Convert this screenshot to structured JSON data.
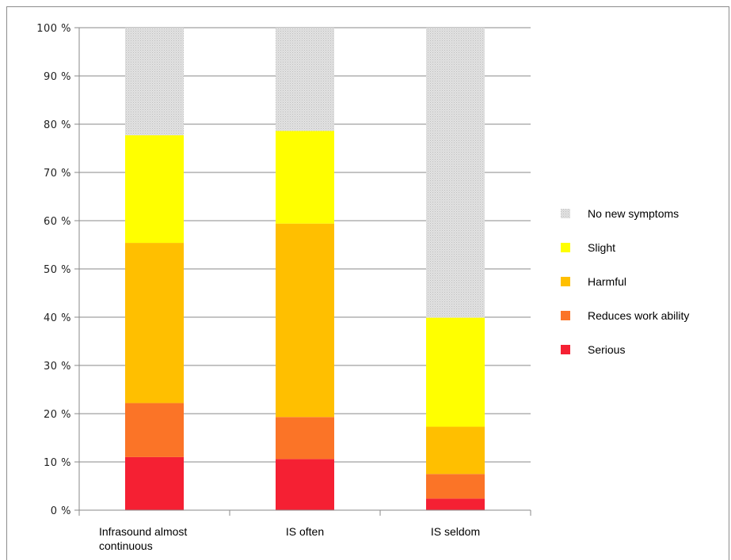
{
  "chart_data": {
    "type": "bar",
    "stacked": true,
    "percent_axis": true,
    "categories": [
      "Infrasound almost continuous",
      "IS often",
      "IS seldom"
    ],
    "y_ticks": [
      "0 %",
      "10 %",
      "20 %",
      "30 %",
      "40 %",
      "50 %",
      "60 %",
      "70 %",
      "80 %",
      "90 %",
      "100 %"
    ],
    "ylim": [
      0,
      100
    ],
    "grid": true,
    "legend_position": "right",
    "series": [
      {
        "name": "Serious",
        "color": "#f52033",
        "values": [
          11,
          10.6,
          2.4
        ]
      },
      {
        "name": "Reduces work ability",
        "color": "#fb7427",
        "values": [
          11.2,
          8.7,
          5.1
        ]
      },
      {
        "name": "Harmful",
        "color": "#ffbf00",
        "values": [
          33.2,
          40.1,
          9.8
        ]
      },
      {
        "name": "Slight",
        "color": "#ffff00",
        "values": [
          22.3,
          19.2,
          22.6
        ]
      },
      {
        "name": "No new symptoms",
        "color": "#d9d9d9",
        "pattern": "dotted",
        "values": [
          22.3,
          21.4,
          60.1
        ]
      }
    ]
  }
}
